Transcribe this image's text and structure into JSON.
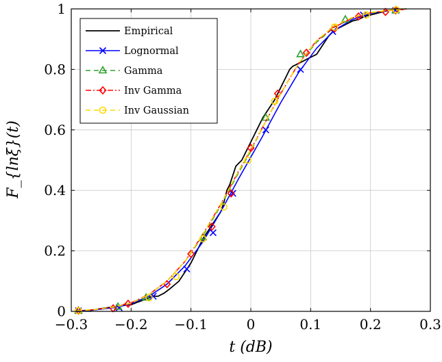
{
  "chart_data": {
    "type": "line",
    "xlabel": "t (dB)",
    "ylabel": "F_{lnξ}(t)",
    "xlim": [
      -0.3,
      0.3
    ],
    "ylim": [
      0,
      1
    ],
    "xticks": [
      -0.3,
      -0.2,
      -0.1,
      0,
      0.1,
      0.2,
      0.3
    ],
    "xtick_labels": [
      "−0.3",
      "−0.2",
      "−0.1",
      "0",
      "0.1",
      "0.2",
      "0.3"
    ],
    "yticks": [
      0,
      0.2,
      0.4,
      0.6,
      0.8,
      1
    ],
    "ytick_labels": [
      "0",
      "0.2",
      "0.4",
      "0.6",
      "0.8",
      "1"
    ],
    "grid": true,
    "legend_position": "top-left",
    "series": [
      {
        "name": "Empirical",
        "color": "#000000",
        "dash": "",
        "marker": "none",
        "x": [
          -0.29,
          -0.27,
          -0.255,
          -0.24,
          -0.225,
          -0.21,
          -0.2,
          -0.19,
          -0.175,
          -0.165,
          -0.155,
          -0.145,
          -0.135,
          -0.12,
          -0.11,
          -0.1,
          -0.09,
          -0.08,
          -0.07,
          -0.06,
          -0.05,
          -0.045,
          -0.04,
          -0.035,
          -0.03,
          -0.025,
          -0.02,
          -0.015,
          -0.01,
          -0.005,
          0.0,
          0.005,
          0.01,
          0.02,
          0.03,
          0.04,
          0.05,
          0.06,
          0.065,
          0.07,
          0.08,
          0.09,
          0.1,
          0.11,
          0.12,
          0.13,
          0.14,
          0.15,
          0.16,
          0.17,
          0.18,
          0.19,
          0.2,
          0.21,
          0.22,
          0.23,
          0.24,
          0.25,
          0.26
        ],
        "y": [
          0.0,
          0.002,
          0.008,
          0.012,
          0.015,
          0.02,
          0.022,
          0.03,
          0.04,
          0.05,
          0.05,
          0.06,
          0.075,
          0.1,
          0.13,
          0.16,
          0.2,
          0.24,
          0.27,
          0.3,
          0.33,
          0.36,
          0.4,
          0.42,
          0.45,
          0.48,
          0.49,
          0.5,
          0.52,
          0.54,
          0.56,
          0.58,
          0.6,
          0.64,
          0.67,
          0.7,
          0.74,
          0.78,
          0.8,
          0.81,
          0.82,
          0.83,
          0.84,
          0.85,
          0.88,
          0.91,
          0.93,
          0.94,
          0.95,
          0.96,
          0.965,
          0.975,
          0.98,
          0.985,
          0.99,
          0.995,
          0.997,
          0.998,
          1.0
        ]
      },
      {
        "name": "Lognormal",
        "color": "#0000ff",
        "dash": "",
        "marker": "x",
        "x": [
          -0.29,
          -0.26,
          -0.23,
          -0.2,
          -0.17,
          -0.14,
          -0.11,
          -0.08,
          -0.05,
          -0.02,
          0.0,
          0.02,
          0.05,
          0.08,
          0.11,
          0.14,
          0.17,
          0.2,
          0.23,
          0.26
        ],
        "y": [
          0.002,
          0.005,
          0.012,
          0.025,
          0.05,
          0.09,
          0.15,
          0.23,
          0.33,
          0.44,
          0.51,
          0.58,
          0.69,
          0.79,
          0.87,
          0.93,
          0.965,
          0.985,
          0.995,
          0.999
        ],
        "marker_x": [
          -0.288,
          -0.22,
          -0.163,
          -0.107,
          -0.063,
          -0.03,
          0.025,
          0.083,
          0.137,
          0.188,
          0.242
        ],
        "marker_y": [
          0.002,
          0.012,
          0.05,
          0.14,
          0.26,
          0.39,
          0.6,
          0.8,
          0.925,
          0.98,
          0.995
        ]
      },
      {
        "name": "Gamma",
        "color": "#2ca02c",
        "dash": "7,5",
        "marker": "triangle",
        "x": [
          -0.29,
          -0.26,
          -0.23,
          -0.2,
          -0.17,
          -0.14,
          -0.11,
          -0.08,
          -0.05,
          -0.02,
          0.0,
          0.02,
          0.05,
          0.08,
          0.11,
          0.14,
          0.17,
          0.2,
          0.23,
          0.26
        ],
        "y": [
          0.002,
          0.006,
          0.014,
          0.028,
          0.055,
          0.1,
          0.165,
          0.25,
          0.35,
          0.46,
          0.53,
          0.61,
          0.72,
          0.82,
          0.89,
          0.94,
          0.97,
          0.987,
          0.995,
          0.999
        ],
        "marker_x": [
          -0.288,
          -0.222,
          -0.175,
          -0.08,
          0.025,
          0.083,
          0.158,
          0.242
        ],
        "marker_y": [
          0.002,
          0.015,
          0.045,
          0.245,
          0.64,
          0.85,
          0.965,
          0.995
        ]
      },
      {
        "name": "Inv Gamma",
        "color": "#ff0000",
        "dash": "8,3,2,3",
        "marker": "diamond",
        "x": [
          -0.29,
          -0.26,
          -0.23,
          -0.2,
          -0.17,
          -0.14,
          -0.11,
          -0.08,
          -0.05,
          -0.02,
          0.0,
          0.02,
          0.05,
          0.08,
          0.11,
          0.14,
          0.17,
          0.2,
          0.23,
          0.26
        ],
        "y": [
          0.002,
          0.006,
          0.014,
          0.028,
          0.056,
          0.1,
          0.165,
          0.255,
          0.355,
          0.465,
          0.535,
          0.61,
          0.72,
          0.82,
          0.895,
          0.94,
          0.97,
          0.987,
          0.995,
          0.999
        ],
        "marker_x": [
          -0.288,
          -0.23,
          -0.205,
          -0.14,
          -0.1,
          -0.065,
          -0.033,
          0.0,
          0.045,
          0.093,
          0.14,
          0.18,
          0.225,
          0.242
        ],
        "marker_y": [
          0.002,
          0.01,
          0.025,
          0.09,
          0.19,
          0.28,
          0.39,
          0.54,
          0.72,
          0.855,
          0.935,
          0.975,
          0.99,
          0.995
        ]
      },
      {
        "name": "Inv Gaussian",
        "color": "#ffd700",
        "dash": "7,5",
        "marker": "circle",
        "x": [
          -0.29,
          -0.26,
          -0.23,
          -0.2,
          -0.17,
          -0.14,
          -0.11,
          -0.08,
          -0.05,
          -0.02,
          0.0,
          0.02,
          0.05,
          0.08,
          0.11,
          0.14,
          0.17,
          0.2,
          0.23,
          0.26
        ],
        "y": [
          0.002,
          0.006,
          0.014,
          0.027,
          0.055,
          0.1,
          0.165,
          0.255,
          0.355,
          0.465,
          0.535,
          0.61,
          0.72,
          0.82,
          0.895,
          0.945,
          0.972,
          0.988,
          0.995,
          0.999
        ],
        "marker_x": [
          -0.288,
          -0.17,
          -0.125,
          -0.08,
          -0.045,
          -0.005,
          0.04,
          0.14,
          0.193,
          0.243
        ],
        "marker_y": [
          0.002,
          0.045,
          0.115,
          0.24,
          0.345,
          0.5,
          0.695,
          0.94,
          0.98,
          0.997
        ]
      }
    ]
  }
}
